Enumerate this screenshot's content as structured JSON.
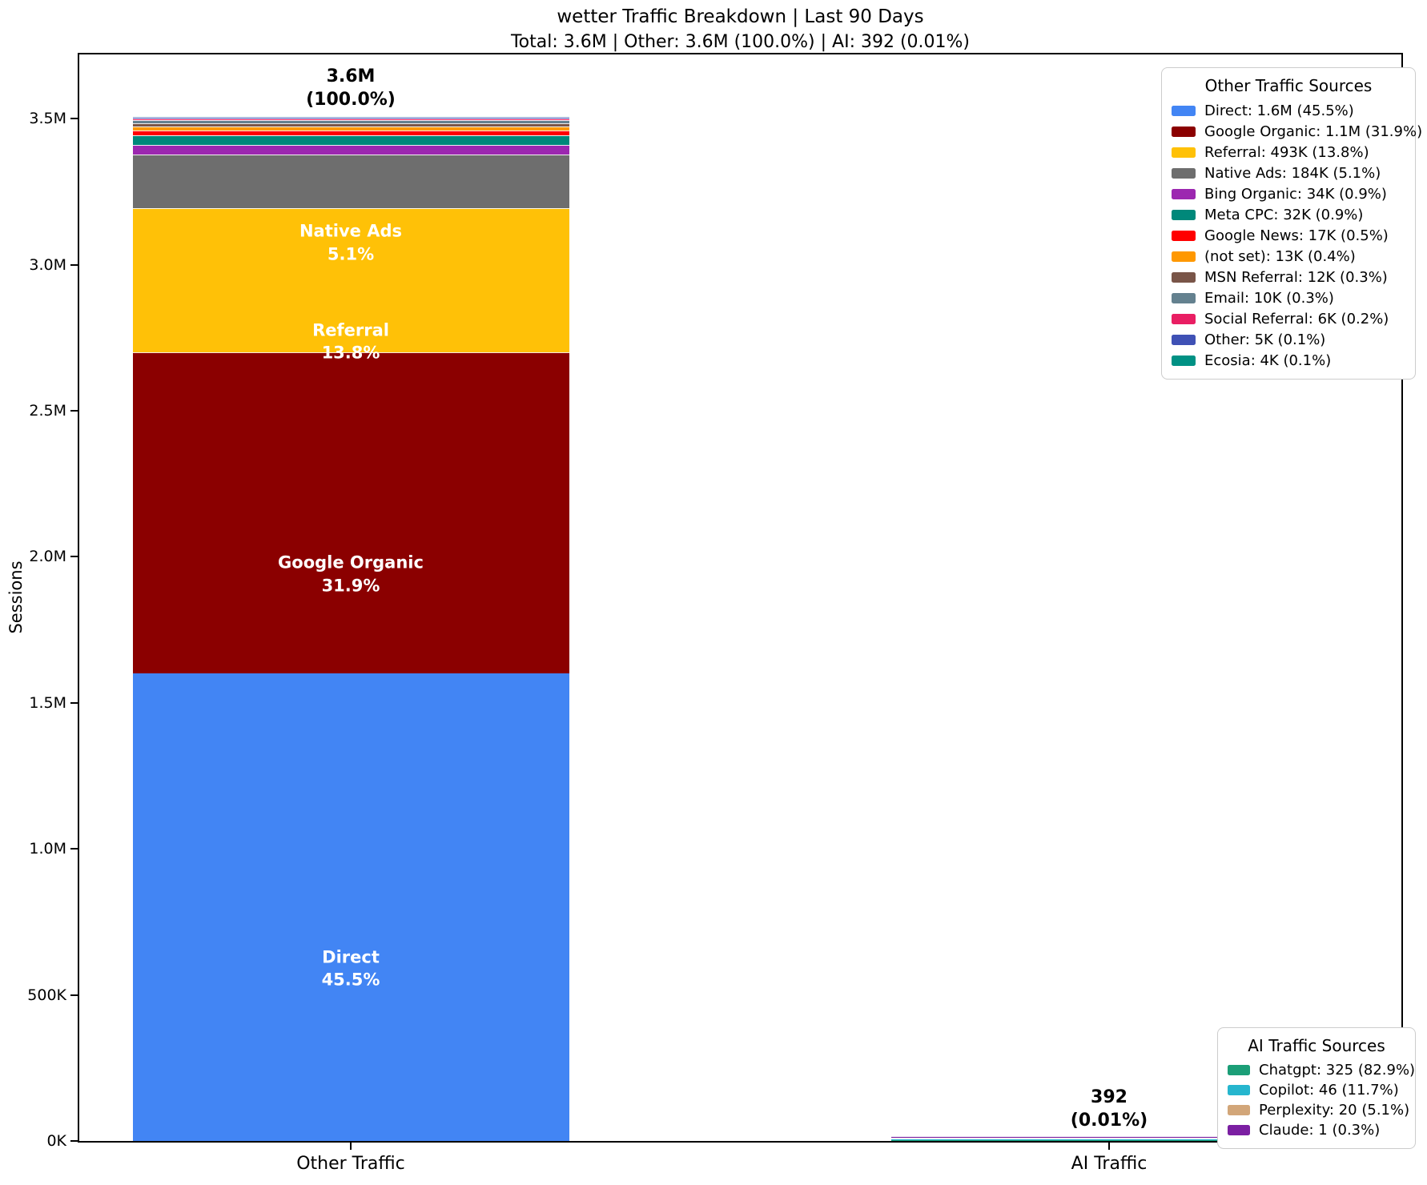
{
  "header": {
    "title": "wetter Traffic Breakdown | Last 90 Days",
    "subtitle": "Total: 3.6M | Other: 3.6M (100.0%) | AI: 392 (0.01%)"
  },
  "chart_data": {
    "type": "stacked_bar",
    "title": "wetter Traffic Breakdown | Last 90 Days",
    "subtitle": "Total: 3.6M | Other: 3.6M (100.0%) | AI: 392 (0.01%)",
    "ylabel": "Sessions",
    "ylim": [
      0,
      3720000
    ],
    "grid": false,
    "categories": [
      "Other Traffic",
      "AI Traffic"
    ],
    "y_ticks": {
      "values": [
        0,
        500000,
        1000000,
        1500000,
        2000000,
        2500000,
        3000000,
        3500000
      ],
      "labels": [
        "0K",
        "500K",
        "1.0M",
        "1.5M",
        "2.0M",
        "2.5M",
        "3.0M",
        "3.5M"
      ]
    },
    "bars": {
      "other": {
        "category": "Other Traffic",
        "total_line1": "3.6M",
        "total_line2": "(100.0%)",
        "segments": [
          {
            "name": "Direct",
            "sessions": 1600000,
            "value_label": "1.6M",
            "pct": "45.5%",
            "color": "#4285f4",
            "legend_label": "Direct: 1.6M (45.5%)",
            "show_bar_label": true
          },
          {
            "name": "Google Organic",
            "sessions": 1100000,
            "value_label": "1.1M",
            "pct": "31.9%",
            "color": "#8b0000",
            "legend_label": "Google Organic: 1.1M (31.9%)",
            "show_bar_label": true
          },
          {
            "name": "Referral",
            "sessions": 493000,
            "value_label": "493K",
            "pct": "13.8%",
            "color": "#ffc107",
            "legend_label": "Referral: 493K (13.8%)",
            "show_bar_label": true
          },
          {
            "name": "Native Ads",
            "sessions": 184000,
            "value_label": "184K",
            "pct": "5.1%",
            "color": "#6e6e6e",
            "legend_label": "Native Ads: 184K (5.1%)",
            "show_bar_label": true
          },
          {
            "name": "Bing Organic",
            "sessions": 34000,
            "value_label": "34K",
            "pct": "0.9%",
            "color": "#9c27b0",
            "legend_label": "Bing Organic: 34K (0.9%)",
            "show_bar_label": false
          },
          {
            "name": "Meta CPC",
            "sessions": 32000,
            "value_label": "32K",
            "pct": "0.9%",
            "color": "#00887a",
            "legend_label": "Meta CPC: 32K (0.9%)",
            "show_bar_label": false
          },
          {
            "name": "Google News",
            "sessions": 17000,
            "value_label": "17K",
            "pct": "0.5%",
            "color": "#ff0000",
            "legend_label": "Google News: 17K (0.5%)",
            "show_bar_label": false
          },
          {
            "name": "(not set)",
            "sessions": 13000,
            "value_label": "13K",
            "pct": "0.4%",
            "color": "#ff9800",
            "legend_label": "(not set): 13K (0.4%)",
            "show_bar_label": false
          },
          {
            "name": "MSN Referral",
            "sessions": 12000,
            "value_label": "12K",
            "pct": "0.3%",
            "color": "#795548",
            "legend_label": "MSN Referral: 12K (0.3%)",
            "show_bar_label": false
          },
          {
            "name": "Email",
            "sessions": 10000,
            "value_label": "10K",
            "pct": "0.3%",
            "color": "#64818f",
            "legend_label": "Email: 10K (0.3%)",
            "show_bar_label": false
          },
          {
            "name": "Social Referral",
            "sessions": 6000,
            "value_label": "6K",
            "pct": "0.2%",
            "color": "#e91e63",
            "legend_label": "Social Referral: 6K (0.2%)",
            "show_bar_label": false
          },
          {
            "name": "Other",
            "sessions": 5000,
            "value_label": "5K",
            "pct": "0.1%",
            "color": "#3f51b5",
            "legend_label": "Other: 5K (0.1%)",
            "show_bar_label": false
          },
          {
            "name": "Ecosia",
            "sessions": 4000,
            "value_label": "4K",
            "pct": "0.1%",
            "color": "#009184",
            "legend_label": "Ecosia: 4K (0.1%)",
            "show_bar_label": false
          }
        ]
      },
      "ai": {
        "category": "AI Traffic",
        "total_line1": "392",
        "total_line2": "(0.01%)",
        "segments": [
          {
            "name": "Chatgpt",
            "sessions": 325,
            "value_label": "325",
            "pct": "82.9%",
            "color": "#1b9e77",
            "legend_label": "Chatgpt: 325 (82.9%)",
            "show_bar_label": false
          },
          {
            "name": "Copilot",
            "sessions": 46,
            "value_label": "46",
            "pct": "11.7%",
            "color": "#26b6ce",
            "legend_label": "Copilot: 46 (11.7%)",
            "show_bar_label": false
          },
          {
            "name": "Perplexity",
            "sessions": 20,
            "value_label": "20",
            "pct": "5.1%",
            "color": "#d2a679",
            "legend_label": "Perplexity: 20 (5.1%)",
            "show_bar_label": false
          },
          {
            "name": "Claude",
            "sessions": 1,
            "value_label": "1",
            "pct": "0.3%",
            "color": "#7b1fa2",
            "legend_label": "Claude: 1 (0.3%)",
            "show_bar_label": false
          }
        ]
      }
    },
    "legends": {
      "other": {
        "title": "Other Traffic Sources",
        "position": "upper right"
      },
      "ai": {
        "title": "AI Traffic Sources",
        "position": "lower right"
      }
    }
  }
}
